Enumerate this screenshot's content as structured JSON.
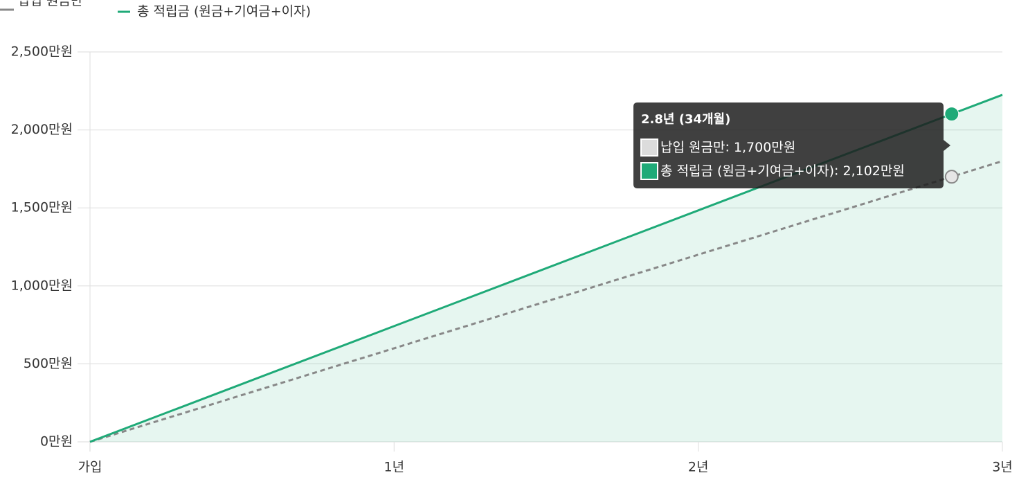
{
  "chart_data": {
    "type": "line",
    "x": [
      0,
      12,
      24,
      34,
      36
    ],
    "xlim": [
      0,
      36
    ],
    "xticks": [
      {
        "value": 0,
        "label": "가입"
      },
      {
        "value": 12,
        "label": "1년"
      },
      {
        "value": 24,
        "label": "2년"
      },
      {
        "value": 36,
        "label": "3년"
      }
    ],
    "ylim": [
      0,
      2500
    ],
    "yticks": [
      {
        "value": 0,
        "label": "0만원"
      },
      {
        "value": 500,
        "label": "500만원"
      },
      {
        "value": 1000,
        "label": "1,000만원"
      },
      {
        "value": 1500,
        "label": "1,500만원"
      },
      {
        "value": 2000,
        "label": "2,000만원"
      },
      {
        "value": 2500,
        "label": "2,500만원"
      }
    ],
    "grid": true,
    "series": [
      {
        "name": "납입 원금만",
        "color": "#888888",
        "dashed": true,
        "values": [
          0,
          600,
          1200,
          1700,
          1800
        ],
        "value_labels": [
          null,
          null,
          null,
          "1,700만원",
          null
        ]
      },
      {
        "name": "총 적립금 (원금+기여금+이자)",
        "color": "#1faa78",
        "fill": true,
        "values": [
          0,
          742,
          1484,
          2102,
          2225
        ],
        "value_labels": [
          null,
          null,
          null,
          "2,102만원",
          null
        ]
      }
    ],
    "tooltip": {
      "title": "2.8년 (34개월)"
    }
  }
}
